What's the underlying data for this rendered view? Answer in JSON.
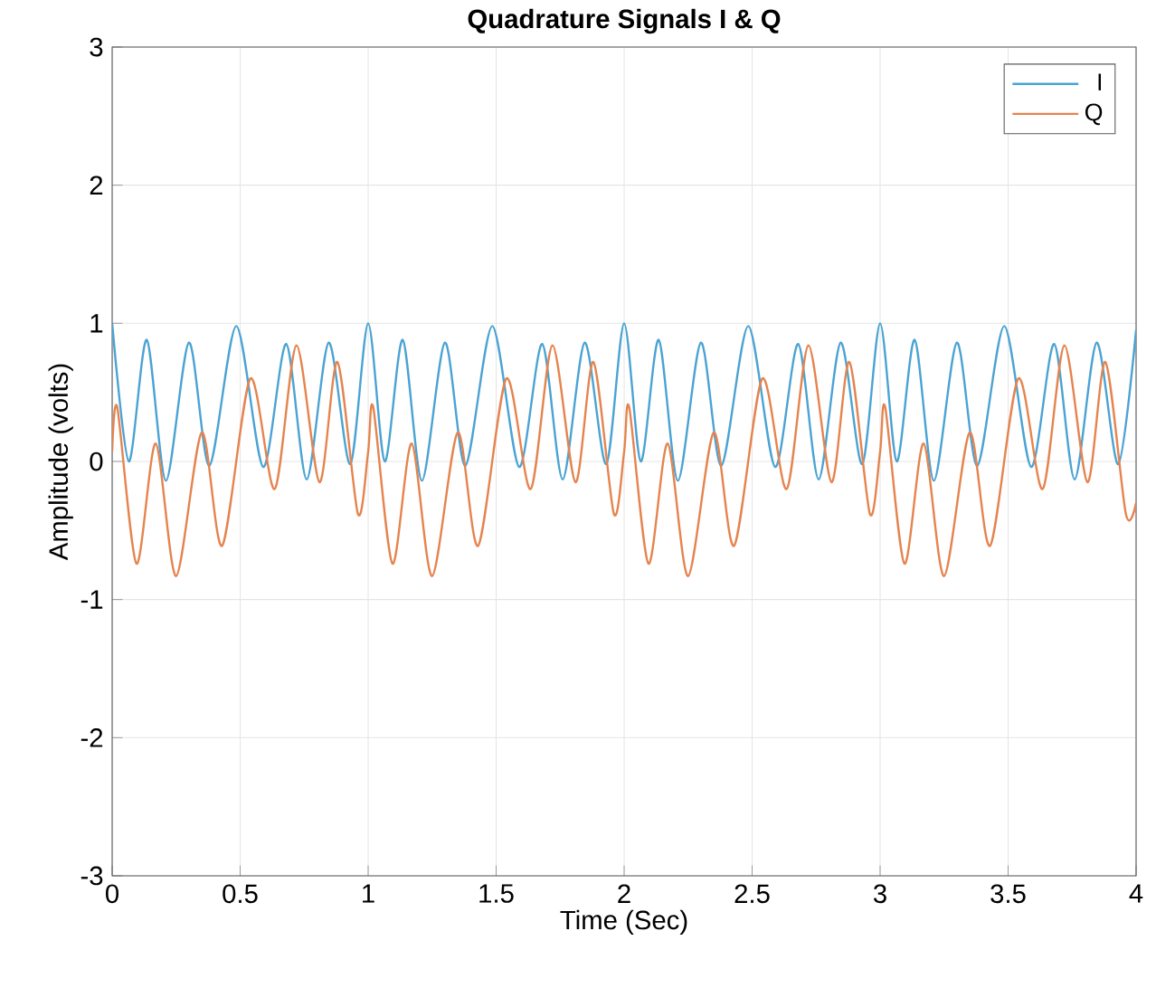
{
  "chart_data": {
    "type": "line",
    "title": "Quadrature Signals I & Q",
    "xlabel": "Time (Sec)",
    "ylabel": "Amplitude (volts)",
    "xlim": [
      0,
      4
    ],
    "ylim": [
      -3,
      3
    ],
    "xticks": [
      0,
      0.5,
      1,
      1.5,
      2,
      2.5,
      3,
      3.5,
      4
    ],
    "yticks": [
      -3,
      -2,
      -1,
      0,
      1,
      2,
      3
    ],
    "grid": true,
    "legend": "top right",
    "series": [
      {
        "name": "I",
        "color": "#4ba3d3",
        "x": [
          0,
          0.065,
          0.135,
          0.21,
          0.3,
          0.38,
          0.485,
          0.59,
          0.68,
          0.76,
          0.846,
          0.93,
          1,
          1.065,
          1.135,
          1.21,
          1.3,
          1.38,
          1.485,
          1.59,
          1.68,
          1.76,
          1.846,
          1.93,
          2,
          2.065,
          2.135,
          2.21,
          2.3,
          2.38,
          2.485,
          2.59,
          2.68,
          2.76,
          2.846,
          2.93,
          3,
          3.065,
          3.135,
          3.21,
          3.3,
          3.38,
          3.485,
          3.59,
          3.68,
          3.76,
          3.846,
          3.93,
          4
        ],
        "values": [
          1.0,
          0.0,
          0.88,
          -0.14,
          0.86,
          -0.03,
          0.98,
          -0.04,
          0.85,
          -0.13,
          0.86,
          -0.02,
          1.0,
          0.0,
          0.88,
          -0.14,
          0.86,
          -0.03,
          0.98,
          -0.04,
          0.85,
          -0.13,
          0.86,
          -0.02,
          1.0,
          0.0,
          0.88,
          -0.14,
          0.86,
          -0.03,
          0.98,
          -0.04,
          0.85,
          -0.13,
          0.86,
          -0.02,
          1.0,
          0.0,
          0.88,
          -0.14,
          0.86,
          -0.03,
          0.98,
          -0.04,
          0.85,
          -0.13,
          0.86,
          -0.02,
          0.95
        ]
      },
      {
        "name": "Q",
        "color": "#e5844f",
        "x": [
          0,
          0.02,
          0.095,
          0.17,
          0.25,
          0.35,
          0.43,
          0.54,
          0.635,
          0.72,
          0.81,
          0.88,
          0.96,
          1,
          1.02,
          1.095,
          1.17,
          1.25,
          1.35,
          1.43,
          1.54,
          1.635,
          1.72,
          1.81,
          1.88,
          1.96,
          2,
          2.02,
          2.095,
          2.17,
          2.25,
          2.35,
          2.43,
          2.54,
          2.635,
          2.72,
          2.81,
          2.88,
          2.96,
          3,
          3.02,
          3.095,
          3.17,
          3.25,
          3.35,
          3.43,
          3.54,
          3.635,
          3.72,
          3.81,
          3.88,
          3.96,
          4
        ],
        "values": [
          0.07,
          0.39,
          -0.74,
          0.13,
          -0.83,
          0.21,
          -0.61,
          0.6,
          -0.2,
          0.84,
          -0.15,
          0.72,
          -0.38,
          0.07,
          0.39,
          -0.74,
          0.13,
          -0.83,
          0.21,
          -0.61,
          0.6,
          -0.2,
          0.84,
          -0.15,
          0.72,
          -0.38,
          0.07,
          0.39,
          -0.74,
          0.13,
          -0.83,
          0.21,
          -0.61,
          0.6,
          -0.2,
          0.84,
          -0.15,
          0.72,
          -0.38,
          0.07,
          0.39,
          -0.74,
          0.13,
          -0.83,
          0.21,
          -0.61,
          0.6,
          -0.2,
          0.84,
          -0.15,
          0.72,
          -0.38,
          -0.3
        ]
      }
    ]
  }
}
